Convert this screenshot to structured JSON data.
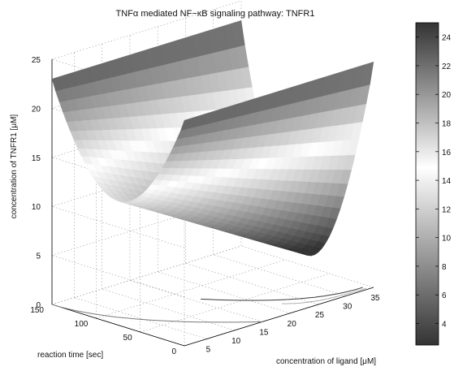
{
  "chart_data": {
    "type": "surface3d",
    "title": "TNFα mediated NF−κB signaling pathway: TNFR1",
    "xlabel": "concentration of ligand [μM]",
    "ylabel": "reaction time [sec]",
    "zlabel": "concentration of TNFR1 [μM]",
    "x_ticks": [
      5,
      10,
      15,
      20,
      25,
      30,
      35
    ],
    "y_ticks": [
      0,
      50,
      100,
      150
    ],
    "z_ticks": [
      0,
      5,
      10,
      15,
      20,
      25
    ],
    "xlim": [
      1,
      35
    ],
    "ylim": [
      0,
      150
    ],
    "zlim": [
      0,
      25
    ],
    "colorbar": {
      "ticks": [
        4,
        6,
        8,
        10,
        12,
        14,
        16,
        18,
        20,
        22,
        24
      ],
      "range": [
        2.5,
        25
      ],
      "colormap": "gray-white-gray"
    },
    "grid": true
  }
}
